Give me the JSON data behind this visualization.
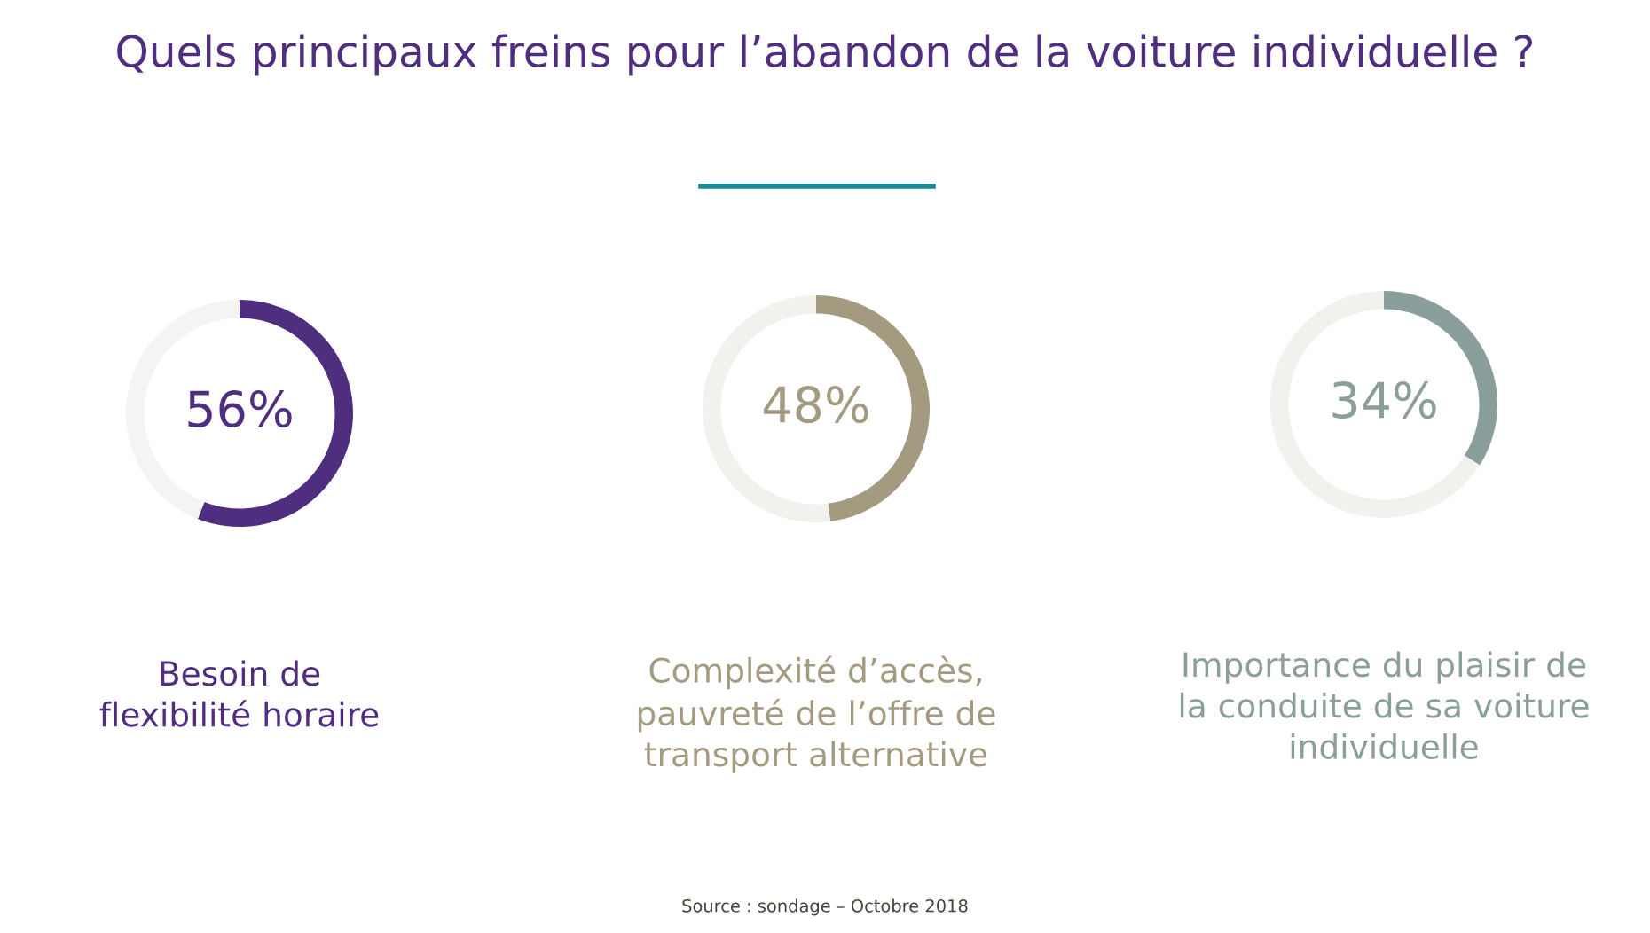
{
  "chart_data": [
    {
      "type": "donut",
      "title": "Quels principaux freins pour l’abandon de la voiture individuelle ?",
      "xlabel": "Besoin de\nflexibilité horaire",
      "categories": [
        null,
        null
      ],
      "values": [
        56,
        44
      ],
      "colors": [
        "#4f2d7f",
        "#f5f4f2"
      ],
      "value_labels": [
        "56%",
        null
      ]
    },
    {
      "type": "donut",
      "xlabel": "Complexité d’accès,\npauvreté de l’offre de\ntransport alternative",
      "categories": [
        null,
        null
      ],
      "values": [
        48,
        52
      ],
      "colors": [
        "#a39a80",
        "#f2f1ed"
      ],
      "value_labels": [
        "48%",
        null
      ]
    },
    {
      "type": "donut",
      "xlabel": "Importance du plaisir de\nla conduite de sa voiture\nindividuelle",
      "categories": [
        null,
        null
      ],
      "values": [
        34,
        66
      ],
      "colors": [
        "#8a9e9c",
        "#f2f1ed"
      ],
      "value_labels": [
        "34%",
        null
      ],
      "annotations": [
        "Source : sondage – Octobre 2018"
      ]
    }
  ]
}
